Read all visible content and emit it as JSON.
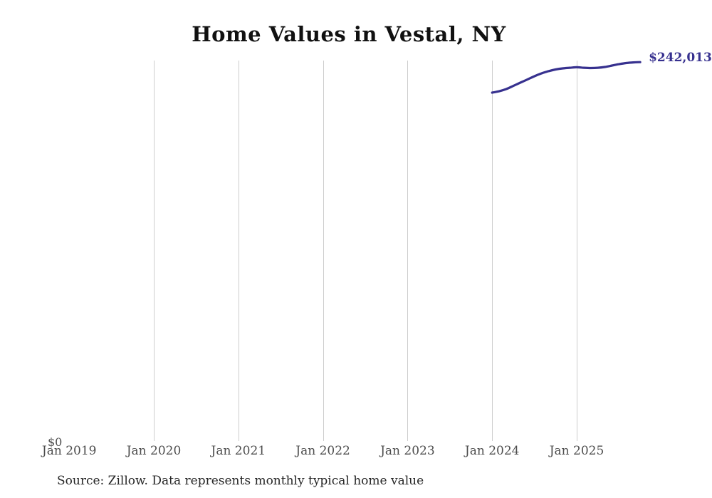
{
  "chart": {
    "title": "Home Values in Vestal, NY",
    "y_zero_label": "$0",
    "value_label": "$242,013",
    "source": "Source: Zillow. Data represents monthly typical home value"
  },
  "chart_data": {
    "type": "line",
    "title": "Home Values in Vestal, NY",
    "xlabel": "",
    "ylabel": "",
    "x_tick_labels": [
      "Jan 2019",
      "Jan 2020",
      "Jan 2021",
      "Jan 2022",
      "Jan 2023",
      "Jan 2024",
      "Jan 2025"
    ],
    "gridline_years": [
      2020,
      2021,
      2022,
      2023,
      2024,
      2025
    ],
    "ylim": [
      0,
      243000
    ],
    "grid": "vertical-only",
    "legend": "none",
    "annotations": [
      "$0",
      "$242,013"
    ],
    "series": [
      {
        "name": "Monthly typical home value",
        "end_label": "$242,013",
        "x": [
          "2024-01",
          "2024-02",
          "2024-03",
          "2024-04",
          "2024-05",
          "2024-06",
          "2024-07",
          "2024-08",
          "2024-09",
          "2024-10",
          "2024-11",
          "2024-12",
          "2025-01",
          "2025-02",
          "2025-03",
          "2025-04",
          "2025-05",
          "2025-06",
          "2025-07",
          "2025-08",
          "2025-09",
          "2025-10"
        ],
        "values": [
          222500,
          223400,
          224800,
          226800,
          228900,
          230900,
          233000,
          234800,
          236200,
          237300,
          238000,
          238400,
          238700,
          238400,
          238200,
          238400,
          238900,
          239800,
          240700,
          241400,
          241800,
          242013
        ]
      }
    ],
    "colors": {
      "line": "#37318f",
      "value_label": "#37318f",
      "gridline": "#cdcdcd",
      "axis_text": "#4d4d4d",
      "title_text": "#111111",
      "source_text": "#262626"
    }
  }
}
